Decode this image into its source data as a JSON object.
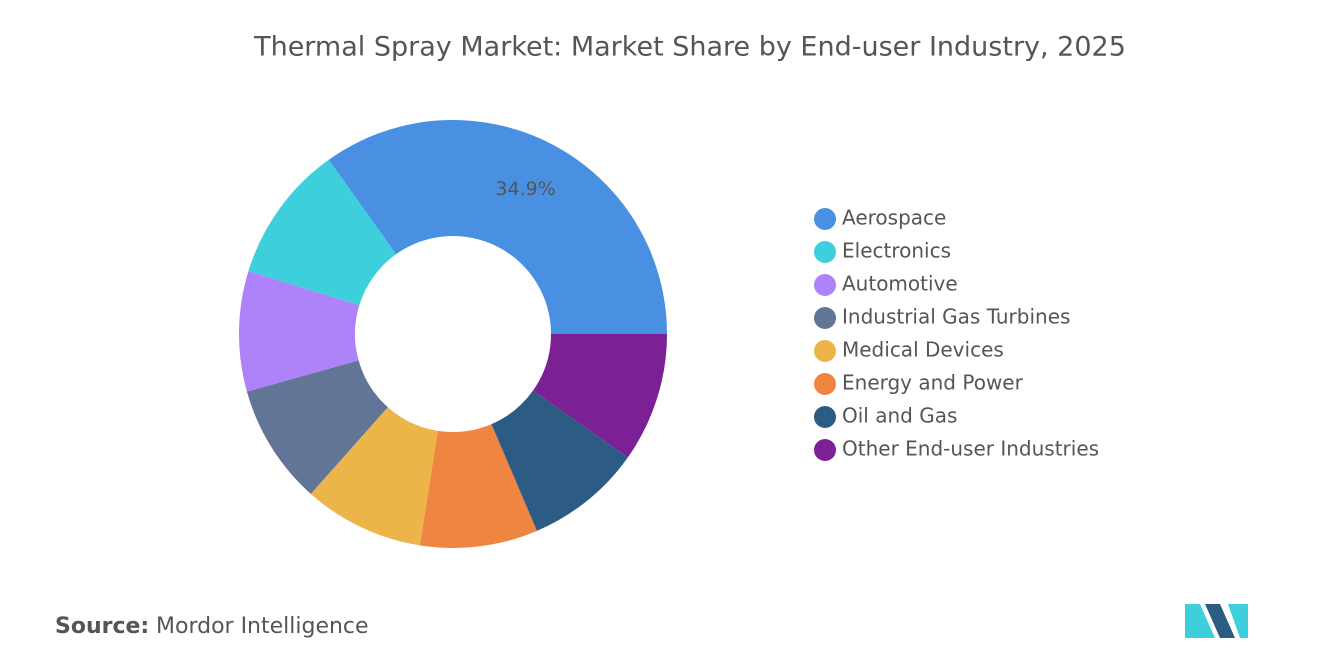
{
  "chart_data": {
    "type": "donut",
    "title": "Thermal Spray Market: Market Share by End-user Industry, 2025",
    "categories": [
      "Aerospace",
      "Electronics",
      "Automotive",
      "Industrial Gas Turbines",
      "Medical Devices",
      "Energy and Power",
      "Oil and Gas",
      "Other End-user Industries"
    ],
    "values": [
      34.9,
      10.4,
      9.1,
      9.1,
      9.1,
      8.9,
      8.8,
      9.8
    ],
    "value_labels": [
      "34.9%",
      null,
      null,
      null,
      null,
      null,
      null,
      null
    ],
    "colors": [
      "#4a90e2",
      "#3ecfdc",
      "#ae82f8",
      "#637597",
      "#ebb54a",
      "#f08441",
      "#2c5b84",
      "#7b2195"
    ],
    "legend": "right"
  },
  "source": {
    "label": "Source:",
    "text": "Mordor Intelligence"
  }
}
